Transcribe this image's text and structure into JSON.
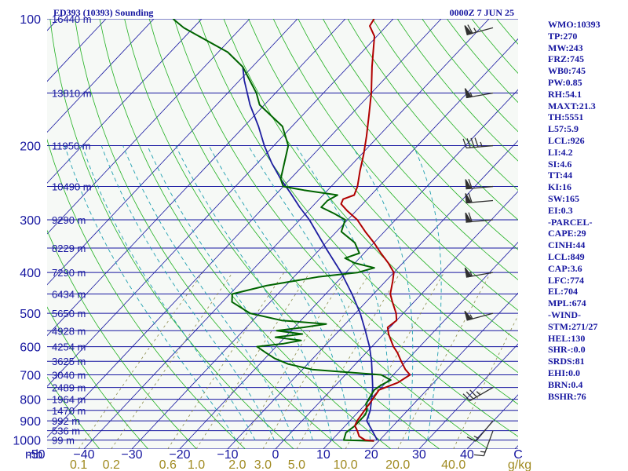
{
  "header": {
    "title": "ED393 (10393) Sounding",
    "datetime": "0000Z  7 JUN 25"
  },
  "chart_data": {
    "type": "skew-t log-p sounding",
    "y_axis": {
      "label": "mb",
      "pressure_ticks": [
        100,
        200,
        300,
        400,
        500,
        600,
        700,
        800,
        900,
        1000
      ],
      "pressure_ticks_text": [
        "100",
        "200",
        "300",
        "400",
        "500",
        "600",
        "700",
        "800",
        "900",
        "1000"
      ]
    },
    "x_axis": {
      "temperature_ticks": [
        -50,
        -40,
        -30,
        -20,
        -10,
        0,
        10,
        20,
        30,
        40
      ],
      "temperature_ticks_text": [
        "-50",
        "−40",
        "−30",
        "−20",
        "−10",
        "0",
        "10",
        "20",
        "30",
        "40"
      ],
      "unit_label": "C",
      "mixing_ratio_ticks": [
        0.1,
        0.2,
        0.6,
        1.0,
        2.0,
        3.0,
        5.0,
        10.0,
        20.0,
        40.0
      ],
      "mixing_ratio_ticks_text": [
        "0.1",
        "0.2",
        "0.6",
        "1.0",
        "2.0",
        "3.0",
        "5.0",
        "10.0",
        "20.0",
        "40.0"
      ],
      "mixing_ratio_unit": "g/kg"
    },
    "height_labels": [
      {
        "p": 100,
        "text": "16440 m"
      },
      {
        "p": 150,
        "text": "13810 m"
      },
      {
        "p": 200,
        "text": "11950 m"
      },
      {
        "p": 250,
        "text": "10490 m"
      },
      {
        "p": 300,
        "text": "9290 m"
      },
      {
        "p": 350,
        "text": "8229 m"
      },
      {
        "p": 400,
        "text": "7290 m"
      },
      {
        "p": 450,
        "text": "6434 m"
      },
      {
        "p": 500,
        "text": "5650 m"
      },
      {
        "p": 550,
        "text": "4928 m"
      },
      {
        "p": 600,
        "text": "4254 m"
      },
      {
        "p": 650,
        "text": "3625 m"
      },
      {
        "p": 700,
        "text": "3040 m"
      },
      {
        "p": 750,
        "text": "2489 m"
      },
      {
        "p": 800,
        "text": "1964 m"
      },
      {
        "p": 850,
        "text": "1470 m"
      },
      {
        "p": 900,
        "text": "992 m"
      },
      {
        "p": 950,
        "text": "536 m"
      },
      {
        "p": 1000,
        "text": "99 m"
      }
    ],
    "temperature_profile": [
      [
        1005,
        19.0
      ],
      [
        1000,
        17.0
      ],
      [
        980,
        15.0
      ],
      [
        950,
        13.5
      ],
      [
        925,
        12.0
      ],
      [
        900,
        11.5
      ],
      [
        850,
        11.0
      ],
      [
        800,
        10.5
      ],
      [
        760,
        10.0
      ],
      [
        730,
        12.5
      ],
      [
        700,
        13.5
      ],
      [
        680,
        11.5
      ],
      [
        650,
        9.0
      ],
      [
        620,
        6.5
      ],
      [
        600,
        4.5
      ],
      [
        560,
        1.0
      ],
      [
        540,
        -0.5
      ],
      [
        520,
        0.0
      ],
      [
        500,
        -1.5
      ],
      [
        470,
        -4.5
      ],
      [
        450,
        -6.5
      ],
      [
        420,
        -8.5
      ],
      [
        400,
        -10.0
      ],
      [
        380,
        -13.0
      ],
      [
        360,
        -16.5
      ],
      [
        340,
        -20.0
      ],
      [
        320,
        -24.0
      ],
      [
        300,
        -28.0
      ],
      [
        285,
        -32.0
      ],
      [
        275,
        -34.5
      ],
      [
        268,
        -35.0
      ],
      [
        262,
        -33.5
      ],
      [
        250,
        -34.5
      ],
      [
        230,
        -37.0
      ],
      [
        210,
        -39.5
      ],
      [
        190,
        -42.5
      ],
      [
        170,
        -46.0
      ],
      [
        150,
        -50.0
      ],
      [
        130,
        -55.0
      ],
      [
        110,
        -60.5
      ],
      [
        104,
        -63.5
      ],
      [
        100,
        -64.0
      ]
    ],
    "dewpoint_profile": [
      [
        1005,
        19.0
      ],
      [
        1000,
        12.5
      ],
      [
        960,
        11.5
      ],
      [
        925,
        12.0
      ],
      [
        900,
        12.0
      ],
      [
        870,
        12.0
      ],
      [
        850,
        11.5
      ],
      [
        820,
        10.0
      ],
      [
        790,
        9.5
      ],
      [
        760,
        9.0
      ],
      [
        740,
        9.5
      ],
      [
        720,
        10.5
      ],
      [
        700,
        7.5
      ],
      [
        680,
        -8.0
      ],
      [
        660,
        -14.0
      ],
      [
        640,
        -18.0
      ],
      [
        620,
        -21.0
      ],
      [
        600,
        -24.0
      ],
      [
        590,
        -19.0
      ],
      [
        580,
        -16.0
      ],
      [
        570,
        -22.0
      ],
      [
        560,
        -17.0
      ],
      [
        550,
        -23.0
      ],
      [
        540,
        -18.0
      ],
      [
        530,
        -14.0
      ],
      [
        520,
        -24.0
      ],
      [
        500,
        -32.0
      ],
      [
        470,
        -38.0
      ],
      [
        450,
        -39.5
      ],
      [
        430,
        -34.0
      ],
      [
        410,
        -25.0
      ],
      [
        400,
        -17.5
      ],
      [
        390,
        -15.0
      ],
      [
        380,
        -20.0
      ],
      [
        370,
        -23.0
      ],
      [
        360,
        -21.0
      ],
      [
        340,
        -24.0
      ],
      [
        320,
        -29.0
      ],
      [
        300,
        -30.5
      ],
      [
        290,
        -34.0
      ],
      [
        280,
        -38.0
      ],
      [
        270,
        -38.0
      ],
      [
        262,
        -37.0
      ],
      [
        255,
        -45.0
      ],
      [
        250,
        -50.0
      ],
      [
        240,
        -52.0
      ],
      [
        200,
        -57.0
      ],
      [
        180,
        -62.0
      ],
      [
        160,
        -71.0
      ],
      [
        150,
        -74.0
      ],
      [
        130,
        -82.0
      ],
      [
        120,
        -88.0
      ],
      [
        105,
        -102.0
      ],
      [
        100,
        -106.0
      ]
    ],
    "parcel_profile": [
      [
        1000,
        19.5
      ],
      [
        940,
        16.0
      ],
      [
        900,
        13.5
      ],
      [
        850,
        12.2
      ],
      [
        800,
        10.3
      ],
      [
        750,
        8.2
      ],
      [
        700,
        5.6
      ],
      [
        650,
        2.8
      ],
      [
        600,
        -0.5
      ],
      [
        550,
        -4.5
      ],
      [
        500,
        -9.0
      ],
      [
        450,
        -14.5
      ],
      [
        400,
        -21.0
      ],
      [
        350,
        -29.0
      ],
      [
        300,
        -38.0
      ],
      [
        280,
        -42.5
      ],
      [
        260,
        -47.0
      ],
      [
        240,
        -52.0
      ],
      [
        220,
        -57.0
      ],
      [
        200,
        -62.0
      ],
      [
        180,
        -67.0
      ],
      [
        160,
        -73.0
      ],
      [
        140,
        -79.0
      ],
      [
        130,
        -82.0
      ]
    ],
    "wind_barbs": [
      {
        "p": 105,
        "dir": 255,
        "spd": 65
      },
      {
        "p": 150,
        "dir": 260,
        "spd": 55
      },
      {
        "p": 200,
        "dir": 265,
        "spd": 45
      },
      {
        "p": 250,
        "dir": 265,
        "spd": 60
      },
      {
        "p": 270,
        "dir": 265,
        "spd": 60
      },
      {
        "p": 300,
        "dir": 265,
        "spd": 60
      },
      {
        "p": 400,
        "dir": 260,
        "spd": 55
      },
      {
        "p": 500,
        "dir": 255,
        "spd": 55
      },
      {
        "p": 750,
        "dir": 240,
        "spd": 35
      },
      {
        "p": 900,
        "dir": 220,
        "spd": 15
      },
      {
        "p": 950,
        "dir": 200,
        "spd": 15
      }
    ]
  },
  "indices": [
    "WMO:10393",
    "TP:270",
    "MW:243",
    "FRZ:745",
    "WB0:745",
    "PW:0.85",
    "RH:54.1",
    "MAXT:21.3",
    "TH:5551",
    "L57:5.9",
    "LCL:926",
    "LI:4.2",
    "SI:4.6",
    "TT:44",
    "KI:16",
    "SW:165",
    "EI:0.3",
    "-PARCEL-",
    "CAPE:29",
    "CINH:44",
    "LCL:849",
    "CAP:3.6",
    "LFC:774",
    "EL:704",
    "MPL:674",
    "-WIND-",
    "STM:271/27",
    "HEL:130",
    "SHR-:0.0",
    "SRDS:81",
    "EHI:0.0",
    "BRN:0.4",
    "BSHR:76"
  ],
  "colors": {
    "isobar": "#1616a0",
    "isotherm": "#1616a0",
    "dry_adiabat": "#20b020",
    "moist_adiabat": "#1f9fb0",
    "mixing_ratio": "#8a8a4a",
    "temperature": "#b00000",
    "dewpoint": "#006400",
    "parcel": "#1e1ea0",
    "plot_background": "#f6f9f6",
    "wind_barb": "#303030"
  }
}
